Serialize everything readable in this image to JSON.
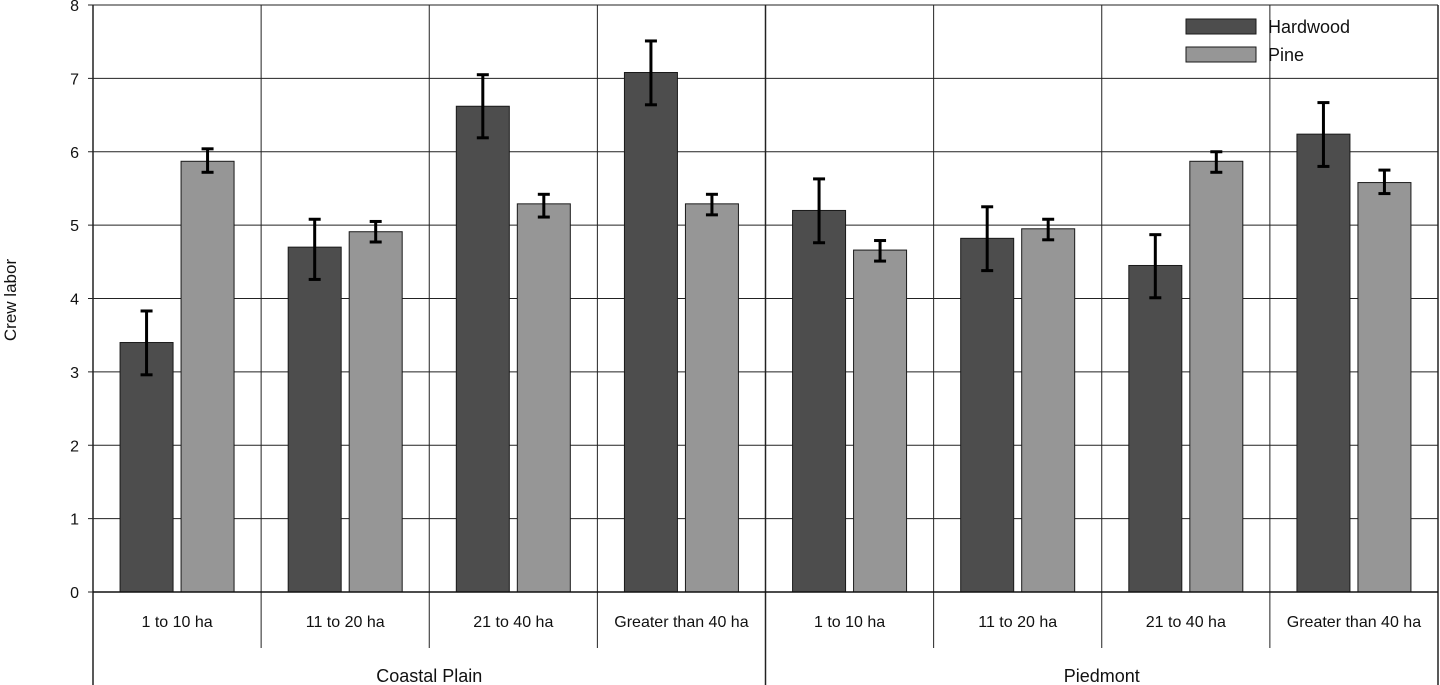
{
  "chart_data": {
    "type": "bar",
    "title": "",
    "xlabel": "",
    "ylabel": "Crew labor",
    "ylim": [
      0,
      8
    ],
    "yticks": [
      0,
      1,
      2,
      3,
      4,
      5,
      6,
      7,
      8
    ],
    "grid": true,
    "legend_position": "top-right",
    "groups": [
      {
        "label": "Coastal Plain",
        "categories": [
          "1 to 10 ha",
          "11 to 20 ha",
          "21 to 40 ha",
          "Greater than 40 ha"
        ]
      },
      {
        "label": "Piedmont",
        "categories": [
          "1 to 10 ha",
          "11 to 20 ha",
          "21 to 40 ha",
          "Greater than 40 ha"
        ]
      }
    ],
    "series": [
      {
        "name": "Hardwood",
        "color": "#4d4d4d",
        "values": [
          3.4,
          4.7,
          6.62,
          7.08,
          5.2,
          4.82,
          4.45,
          6.24
        ],
        "err_low": [
          2.96,
          4.26,
          6.19,
          6.64,
          4.76,
          4.38,
          4.01,
          5.8
        ],
        "err_high": [
          3.83,
          5.08,
          7.05,
          7.51,
          5.63,
          5.25,
          4.87,
          6.67
        ]
      },
      {
        "name": "Pine",
        "color": "#969696",
        "values": [
          5.87,
          4.91,
          5.29,
          5.29,
          4.66,
          4.95,
          5.87,
          5.58
        ],
        "err_low": [
          5.72,
          4.77,
          5.11,
          5.14,
          4.51,
          4.8,
          5.72,
          5.43
        ],
        "err_high": [
          6.04,
          5.05,
          5.42,
          5.42,
          4.79,
          5.08,
          6.0,
          5.75
        ]
      }
    ]
  }
}
